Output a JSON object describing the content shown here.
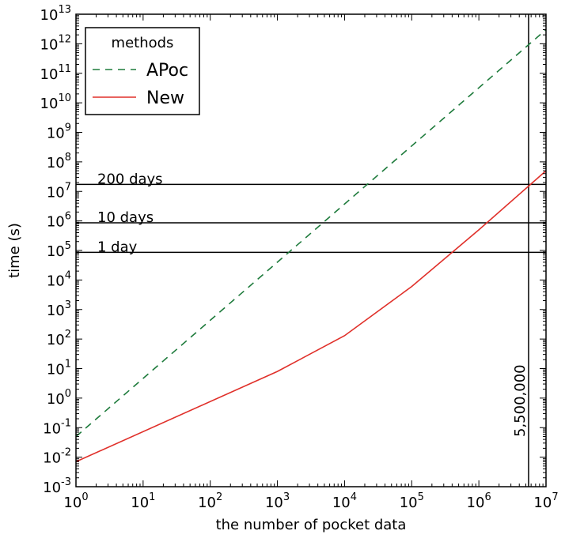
{
  "chart_data": {
    "type": "line",
    "xlabel": "the number of pocket data",
    "ylabel": "time (s)",
    "xscale": "log",
    "yscale": "log",
    "xlim": [
      1,
      10000000
    ],
    "ylim": [
      0.001,
      10000000000000
    ],
    "grid": false,
    "x_tick_exponents": [
      0,
      1,
      2,
      3,
      4,
      5,
      6,
      7
    ],
    "y_tick_exponents": [
      -3,
      -2,
      -1,
      0,
      1,
      2,
      3,
      4,
      5,
      6,
      7,
      8,
      9,
      10,
      11,
      12,
      13
    ],
    "tick_base": "10",
    "legend": {
      "title": "methods",
      "placement": "top-left",
      "entries": [
        {
          "label": "APoc",
          "color": "#1e7b3c",
          "style": "dashed"
        },
        {
          "label": "New",
          "color": "#e0302a",
          "style": "solid"
        }
      ]
    },
    "series": [
      {
        "name": "APoc",
        "color": "#1e7b3c",
        "style": "dashed",
        "points": [
          {
            "x": 1,
            "y": 0.05
          },
          {
            "x": 10000000,
            "y": 3000000000000
          }
        ]
      },
      {
        "name": "New",
        "color": "#e0302a",
        "style": "solid",
        "points": [
          {
            "x": 1,
            "y": 0.007
          },
          {
            "x": 1000,
            "y": 8
          },
          {
            "x": 10000,
            "y": 130
          },
          {
            "x": 100000,
            "y": 6000
          },
          {
            "x": 1000000,
            "y": 500000
          },
          {
            "x": 10000000,
            "y": 50000000
          }
        ]
      }
    ],
    "reference_lines": {
      "horizontal": [
        {
          "y": 17280000,
          "label": "200 days"
        },
        {
          "y": 864000,
          "label": "10 days"
        },
        {
          "y": 86400,
          "label": "1 day"
        }
      ],
      "vertical": [
        {
          "x": 5500000,
          "label": "5,500,000"
        }
      ]
    }
  }
}
